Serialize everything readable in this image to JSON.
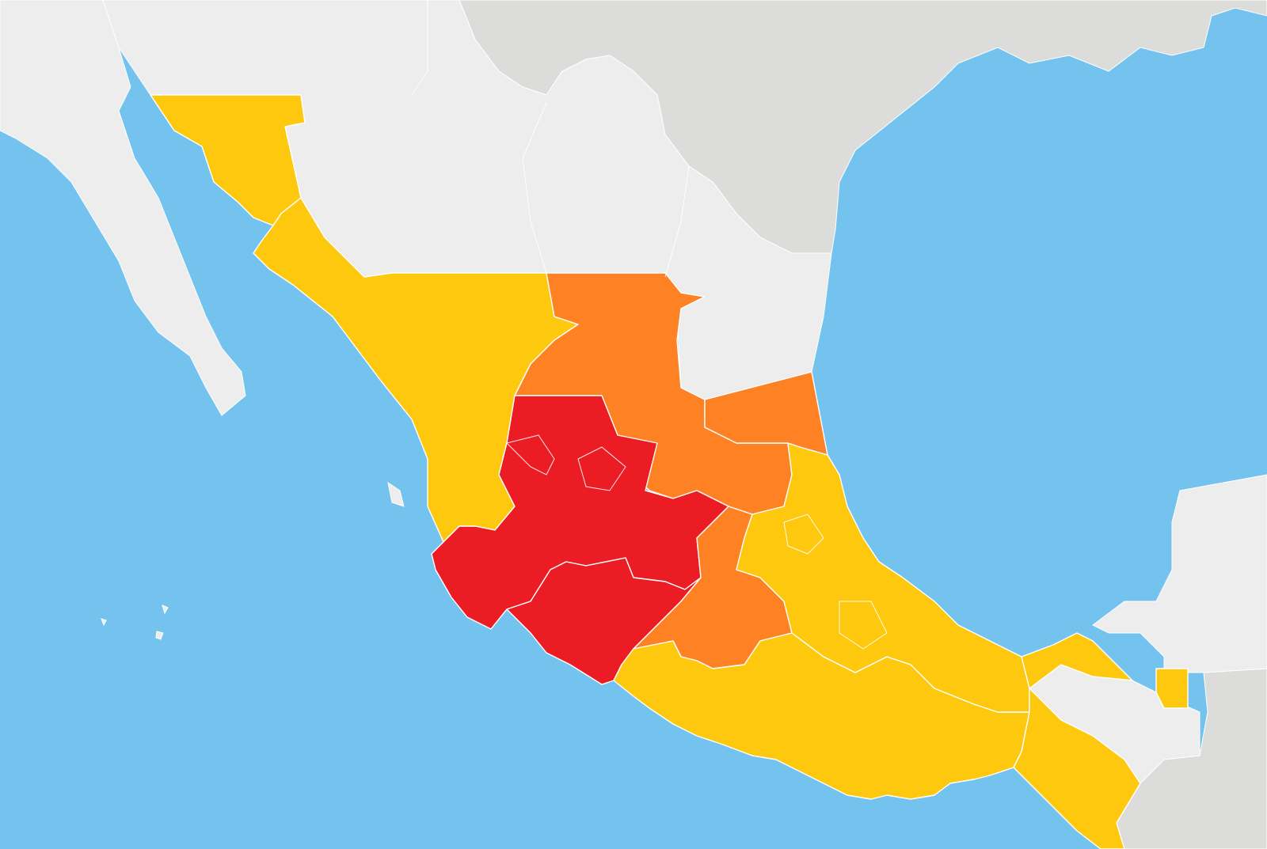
{
  "colors": {
    "ocean": "#74c3ef",
    "foreign_land": "#dcdcdb",
    "country_land": "#ededed",
    "level_high": "#ec1c24",
    "level_elevated": "#fe8124",
    "level_moderate": "#fec80e"
  },
  "regions": [
    {
      "id": "sonora-chihuahua-border",
      "level": "moderate"
    },
    {
      "id": "sinaloa-durango",
      "level": "moderate"
    },
    {
      "id": "zacatecas-sanluis",
      "level": "elevated"
    },
    {
      "id": "jalisco-michoacan",
      "level": "high"
    },
    {
      "id": "guerrero",
      "level": "high"
    },
    {
      "id": "veracruz-tamaulipas-south",
      "level": "elevated"
    },
    {
      "id": "central-highlands",
      "level": "elevated"
    },
    {
      "id": "oaxaca-south",
      "level": "moderate"
    },
    {
      "id": "veracruz-puebla",
      "level": "moderate"
    },
    {
      "id": "chiapas-tabasco",
      "level": "moderate"
    },
    {
      "id": "campeche-east",
      "level": "moderate"
    }
  ]
}
